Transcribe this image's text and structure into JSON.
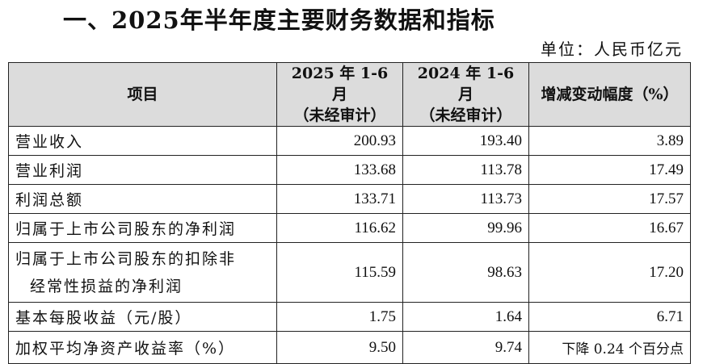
{
  "title": "一、2025年半年度主要财务数据和指标",
  "unit": "单位：人民币亿元",
  "table": {
    "headers": {
      "item": "项目",
      "cur_line1": "2025 年 1-6 月",
      "cur_line2": "（未经审计）",
      "prev_line1": "2024 年 1-6 月",
      "prev_line2": "（未经审计）",
      "change": "增减变动幅度（%）"
    },
    "rows": [
      {
        "label": "营业收入",
        "cur": "200.93",
        "prev": "193.40",
        "change": "3.89"
      },
      {
        "label": "营业利润",
        "cur": "133.68",
        "prev": "113.78",
        "change": "17.49"
      },
      {
        "label": "利润总额",
        "cur": "133.71",
        "prev": "113.73",
        "change": "17.57"
      },
      {
        "label": "归属于上市公司股东的净利润",
        "cur": "116.62",
        "prev": "99.96",
        "change": "16.67"
      },
      {
        "label_line1": "归属于上市公司股东的扣除非",
        "label_line2": "经常性损益的净利润",
        "cur": "115.59",
        "prev": "98.63",
        "change": "17.20"
      },
      {
        "label": "基本每股收益（元/股）",
        "cur": "1.75",
        "prev": "1.64",
        "change": "6.71"
      },
      {
        "label": "加权平均净资产收益率（%）",
        "cur": "9.50",
        "prev": "9.74",
        "change": "下降 0.24 个百分点"
      }
    ]
  }
}
